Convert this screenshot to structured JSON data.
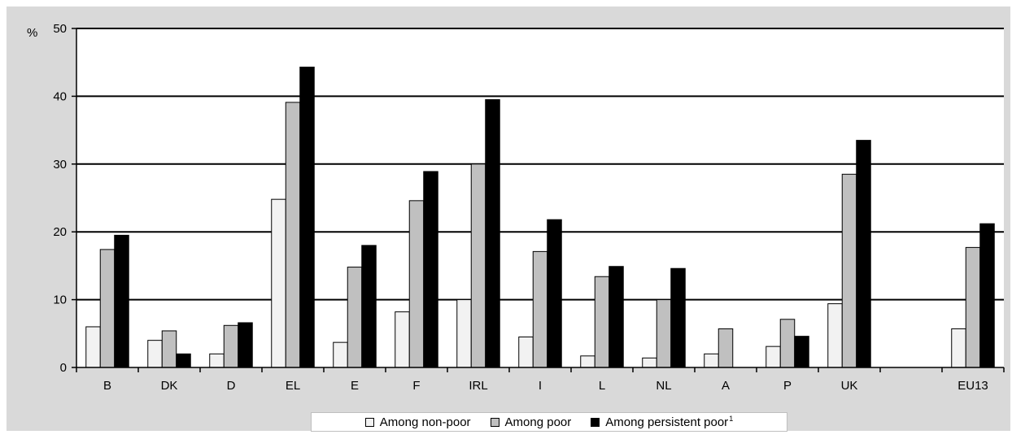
{
  "chart_data": {
    "type": "bar",
    "ylabel": "%",
    "ylim": [
      0,
      50
    ],
    "yticks": [
      0,
      10,
      20,
      30,
      40,
      50
    ],
    "grid": true,
    "legend_position": "bottom",
    "categories": [
      "B",
      "DK",
      "D",
      "EL",
      "E",
      "F",
      "IRL",
      "I",
      "L",
      "NL",
      "A",
      "P",
      "UK",
      "",
      "EU13"
    ],
    "series": [
      {
        "name": "Among non-poor",
        "color": "#f2f2f2",
        "values": [
          6.0,
          4.0,
          2.0,
          24.8,
          3.7,
          8.2,
          10.0,
          4.5,
          1.7,
          1.4,
          2.0,
          3.1,
          9.4,
          null,
          5.7
        ]
      },
      {
        "name": "Among poor",
        "color": "#c0c0c0",
        "values": [
          17.4,
          5.4,
          6.2,
          39.1,
          14.8,
          24.6,
          30.0,
          17.1,
          13.4,
          10.0,
          5.7,
          7.1,
          28.5,
          null,
          17.7
        ]
      },
      {
        "name": "Among persistent poor",
        "footnote": "1",
        "color": "#000000",
        "values": [
          19.5,
          2.0,
          6.6,
          44.3,
          18.0,
          28.9,
          39.5,
          21.8,
          14.9,
          14.6,
          null,
          4.6,
          33.5,
          null,
          21.2
        ]
      }
    ]
  }
}
